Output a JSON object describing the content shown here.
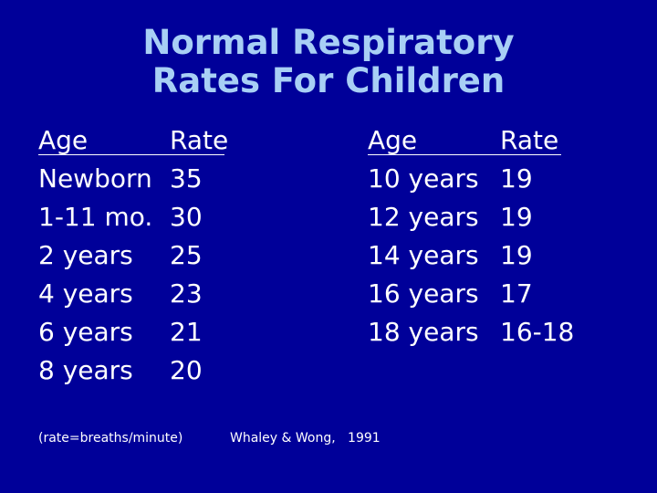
{
  "title": {
    "line1": "Normal Respiratory",
    "line2": "Rates For Children"
  },
  "left_table": {
    "age_header": "Age",
    "rate_header": "Rate",
    "rows": [
      {
        "age": "Newborn",
        "rate": "35"
      },
      {
        "age": "1-11 mo.",
        "rate": "30"
      },
      {
        "age": "2 years",
        "rate": "25"
      },
      {
        "age": "4 years",
        "rate": "23"
      },
      {
        "age": "6 years",
        "rate": "21"
      },
      {
        "age": "8 years",
        "rate": "20"
      }
    ]
  },
  "right_table": {
    "age_header": "Age",
    "rate_header": "Rate",
    "rows": [
      {
        "age": "10 years",
        "rate": "19"
      },
      {
        "age": "12 years",
        "rate": "19"
      },
      {
        "age": "14 years",
        "rate": "19"
      },
      {
        "age": "16 years",
        "rate": "17"
      },
      {
        "age": "18 years",
        "rate": "16-18"
      }
    ]
  },
  "footnotes": {
    "units": "(rate=breaths/minute)",
    "source": "Whaley & Wong,   1991"
  },
  "colors": {
    "background": "#000099",
    "title": "#a8cff5",
    "text": "#ffffff"
  }
}
